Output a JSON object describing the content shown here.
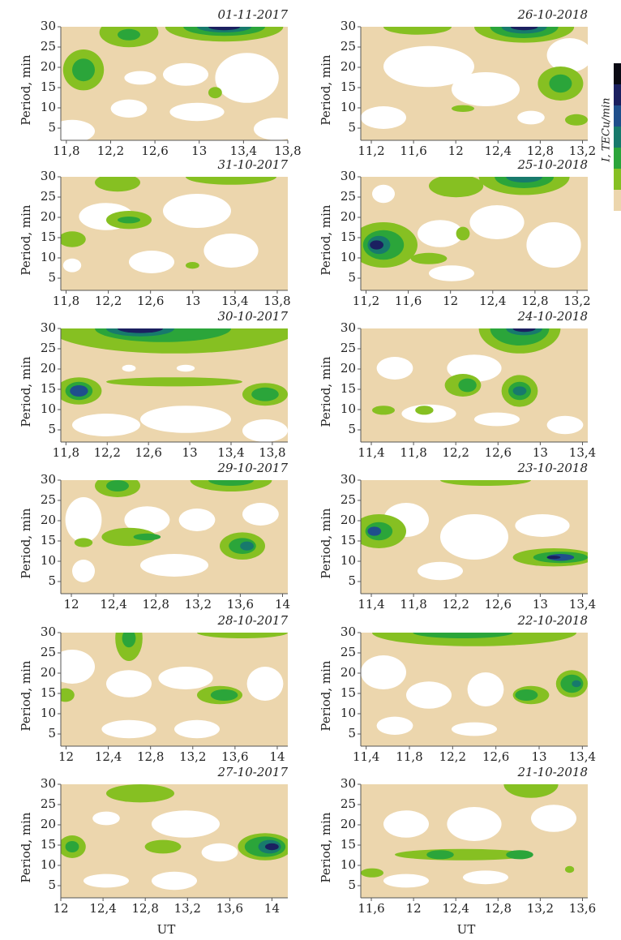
{
  "chart_data": [
    {
      "type": "contour",
      "title": "01-11-2017",
      "y_label": "Period, min",
      "ylim": [
        2,
        30
      ],
      "yticks": [
        5,
        10,
        15,
        20,
        25,
        30
      ],
      "xlim": [
        11.75,
        13.8
      ],
      "xticks": [
        {
          "value": 11.8,
          "label": "11,8"
        },
        {
          "value": 12.2,
          "label": "12,2"
        },
        {
          "value": 12.6,
          "label": "12,6"
        },
        13,
        {
          "value": 13.4,
          "label": "13,4"
        },
        {
          "value": 13.8,
          "label": "13,8"
        }
      ]
    },
    {
      "type": "contour",
      "title": "26-10-2018",
      "y_label": "Period, min",
      "ylim": [
        2,
        30
      ],
      "yticks": [
        5,
        10,
        15,
        20,
        25,
        30
      ],
      "xlim": [
        11.1,
        13.25
      ],
      "xticks": [
        {
          "value": 11.2,
          "label": "11,2"
        },
        {
          "value": 11.6,
          "label": "11,6"
        },
        12,
        {
          "value": 12.4,
          "label": "12,4"
        },
        {
          "value": 12.8,
          "label": "12,8"
        },
        {
          "value": 13.2,
          "label": "13,2"
        }
      ]
    },
    {
      "type": "contour",
      "title": "31-10-2017",
      "y_label": "Period, min",
      "ylim": [
        2,
        30
      ],
      "yticks": [
        5,
        10,
        15,
        20,
        25,
        30
      ],
      "xlim": [
        11.75,
        13.9
      ],
      "xticks": [
        {
          "value": 11.8,
          "label": "11,8"
        },
        {
          "value": 12.2,
          "label": "12,2"
        },
        {
          "value": 12.6,
          "label": "12,6"
        },
        13,
        {
          "value": 13.4,
          "label": "13,4"
        },
        {
          "value": 13.8,
          "label": "13,8"
        }
      ]
    },
    {
      "type": "contour",
      "title": "25-10-2018",
      "y_label": "Period, min",
      "ylim": [
        2,
        30
      ],
      "yticks": [
        5,
        10,
        15,
        20,
        25,
        30
      ],
      "xlim": [
        11.15,
        13.3
      ],
      "xticks": [
        {
          "value": 11.2,
          "label": "11,2"
        },
        {
          "value": 11.6,
          "label": "11,6"
        },
        12,
        {
          "value": 12.4,
          "label": "12,4"
        },
        {
          "value": 12.8,
          "label": "12,8"
        },
        {
          "value": 13.2,
          "label": "13,2"
        }
      ]
    },
    {
      "type": "contour",
      "title": "30-10-2017",
      "y_label": "Period, min",
      "ylim": [
        2,
        30
      ],
      "yticks": [
        5,
        10,
        15,
        20,
        25,
        30
      ],
      "xlim": [
        11.75,
        13.95
      ],
      "xticks": [
        {
          "value": 11.8,
          "label": "11,8"
        },
        {
          "value": 12.2,
          "label": "12,2"
        },
        {
          "value": 12.6,
          "label": "12,6"
        },
        13,
        {
          "value": 13.4,
          "label": "13,4"
        },
        {
          "value": 13.8,
          "label": "13,8"
        }
      ]
    },
    {
      "type": "contour",
      "title": "24-10-2018",
      "y_label": "Period, min",
      "ylim": [
        2,
        30
      ],
      "yticks": [
        5,
        10,
        15,
        20,
        25,
        30
      ],
      "xlim": [
        11.3,
        13.45
      ],
      "xticks": [
        {
          "value": 11.4,
          "label": "11,4"
        },
        {
          "value": 11.8,
          "label": "11,8"
        },
        {
          "value": 12.2,
          "label": "12,2"
        },
        {
          "value": 12.6,
          "label": "12,6"
        },
        13,
        {
          "value": 13.4,
          "label": "13,4"
        }
      ]
    },
    {
      "type": "contour",
      "title": "29-10-2017",
      "y_label": "Period, min",
      "ylim": [
        2,
        30
      ],
      "yticks": [
        5,
        10,
        15,
        20,
        25,
        30
      ],
      "xlim": [
        11.9,
        14.05
      ],
      "xticks": [
        12,
        {
          "value": 12.4,
          "label": "12,4"
        },
        {
          "value": 12.8,
          "label": "12,8"
        },
        {
          "value": 13.2,
          "label": "13,2"
        },
        {
          "value": 13.6,
          "label": "13,6"
        },
        14
      ]
    },
    {
      "type": "contour",
      "title": "23-10-2018",
      "y_label": "Period, min",
      "ylim": [
        2,
        30
      ],
      "yticks": [
        5,
        10,
        15,
        20,
        25,
        30
      ],
      "xlim": [
        11.3,
        13.45
      ],
      "xticks": [
        {
          "value": 11.4,
          "label": "11,4"
        },
        {
          "value": 11.8,
          "label": "11,8"
        },
        {
          "value": 12.2,
          "label": "12,2"
        },
        {
          "value": 12.6,
          "label": "12,6"
        },
        13,
        {
          "value": 13.4,
          "label": "13,4"
        }
      ]
    },
    {
      "type": "contour",
      "title": "28-10-2017",
      "y_label": "Period, min",
      "ylim": [
        2,
        30
      ],
      "yticks": [
        5,
        10,
        15,
        20,
        25,
        30
      ],
      "xlim": [
        11.95,
        14.1
      ],
      "xticks": [
        12,
        {
          "value": 12.4,
          "label": "12,4"
        },
        {
          "value": 12.8,
          "label": "12,8"
        },
        {
          "value": 13.2,
          "label": "13,2"
        },
        {
          "value": 13.6,
          "label": "13,6"
        },
        14
      ]
    },
    {
      "type": "contour",
      "title": "22-10-2018",
      "y_label": "Period, min",
      "ylim": [
        2,
        30
      ],
      "yticks": [
        5,
        10,
        15,
        20,
        25,
        30
      ],
      "xlim": [
        11.35,
        13.45
      ],
      "xticks": [
        {
          "value": 11.4,
          "label": "11,4"
        },
        {
          "value": 11.8,
          "label": "11,8"
        },
        {
          "value": 12.2,
          "label": "12,2"
        },
        {
          "value": 12.6,
          "label": "12,6"
        },
        13,
        {
          "value": 13.4,
          "label": "13,4"
        }
      ]
    },
    {
      "type": "contour",
      "title": "27-10-2017",
      "y_label": "Period, min",
      "x_label": "UT",
      "ylim": [
        2,
        30
      ],
      "yticks": [
        5,
        10,
        15,
        20,
        25,
        30
      ],
      "xlim": [
        12,
        14.15
      ],
      "xticks": [
        12,
        {
          "value": 12.4,
          "label": "12,4"
        },
        {
          "value": 12.8,
          "label": "12,8"
        },
        {
          "value": 13.2,
          "label": "13,2"
        },
        {
          "value": 13.6,
          "label": "13,6"
        },
        14
      ]
    },
    {
      "type": "contour",
      "title": "21-10-2018",
      "y_label": "Period, min",
      "x_label": "UT",
      "ylim": [
        2,
        30
      ],
      "yticks": [
        5,
        10,
        15,
        20,
        25,
        30
      ],
      "xlim": [
        11.5,
        13.65
      ],
      "xticks": [
        {
          "value": 11.6,
          "label": "11,6"
        },
        12,
        {
          "value": 12.4,
          "label": "12,4"
        },
        {
          "value": 12.8,
          "label": "12,8"
        },
        {
          "value": 13.2,
          "label": "13,2"
        },
        {
          "value": 13.6,
          "label": "13,6"
        }
      ]
    }
  ],
  "colorbar": {
    "label": "I, TECu/min",
    "colors": [
      "#0a0a14",
      "#1b2060",
      "#1f4f8c",
      "#177a6c",
      "#2ba53a",
      "#86c022",
      "#ecd6ad"
    ]
  }
}
